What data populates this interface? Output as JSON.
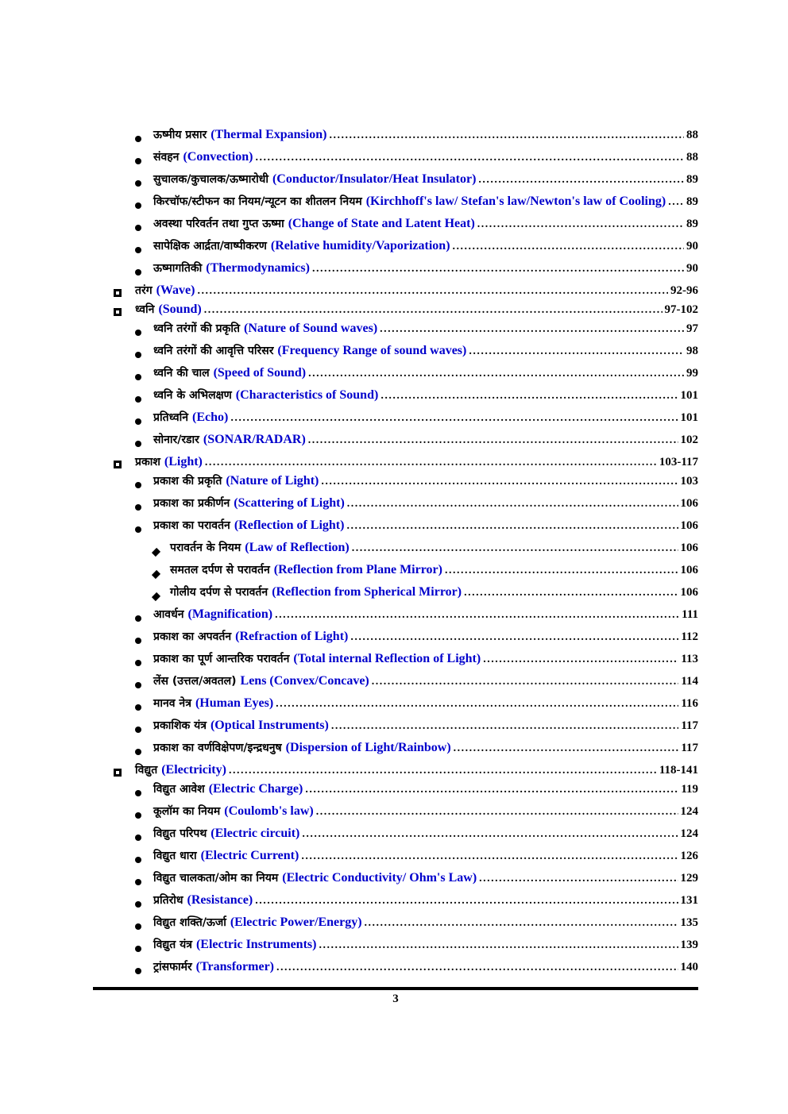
{
  "colors": {
    "link_blue": "#0000cc",
    "text_black": "#000000"
  },
  "icons": {
    "section_bullet": "square-bullet-icon",
    "item_bullet": "circle-bullet-icon",
    "subitem_bullet": "diamond-bullet-icon"
  },
  "footer": {
    "page_number": "3"
  },
  "toc": {
    "entries": [
      {
        "level": 1,
        "hi": "ऊष्मीय प्रसार",
        "en": "(Thermal Expansion)",
        "page": "88"
      },
      {
        "level": 1,
        "hi": "संवहन",
        "en": "(Convection)",
        "page": "88"
      },
      {
        "level": 1,
        "hi": "सुचालक/कुचालक/ऊष्मारोधी",
        "en": "(Conductor/Insulator/Heat Insulator)",
        "page": "89"
      },
      {
        "level": 1,
        "hi": "किरचॉफ/स्टीफन का नियम/न्यूटन का शीतलन नियम",
        "en": "(Kirchhoff's law/ Stefan's law/Newton's law of Cooling)",
        "page": "89"
      },
      {
        "level": 1,
        "hi": "अवस्था परिवर्तन तथा गुप्त ऊष्मा",
        "en": "(Change of State and Latent Heat)",
        "page": "89"
      },
      {
        "level": 1,
        "hi": "सापेक्षिक आर्द्रता/वाष्पीकरण",
        "en": "(Relative humidity/Vaporization)",
        "page": "90"
      },
      {
        "level": 1,
        "hi": "ऊष्मागतिकी",
        "en": "(Thermodynamics)",
        "page": "90"
      },
      {
        "level": 0,
        "hi": "तरंग",
        "en": "(Wave)",
        "page": "92-96"
      },
      {
        "level": 0,
        "hi": "ध्वनि",
        "en": "(Sound)",
        "page": "97-102"
      },
      {
        "level": 1,
        "hi": "ध्वनि तरंगों की प्रकृति",
        "en": "(Nature of Sound waves)",
        "page": "97"
      },
      {
        "level": 1,
        "hi": "ध्वनि तरंगों की आवृत्ति परिसर",
        "en": "(Frequency Range of sound waves)",
        "page": "98"
      },
      {
        "level": 1,
        "hi": "ध्वनि की चाल",
        "en": "(Speed of Sound)",
        "page": "99"
      },
      {
        "level": 1,
        "hi": "ध्वनि के अभिलक्षण",
        "en": "(Characteristics of Sound)",
        "page": "101"
      },
      {
        "level": 1,
        "hi": "प्रतिध्वनि",
        "en": "(Echo)",
        "page": "101"
      },
      {
        "level": 1,
        "hi": "सोनार/रडार",
        "en": "(SONAR/RADAR)",
        "page": "102"
      },
      {
        "level": 0,
        "hi": "प्रकाश",
        "en": "(Light)",
        "page": "103-117"
      },
      {
        "level": 1,
        "hi": "प्रकाश की प्रकृति",
        "en": "(Nature of Light)",
        "page": "103"
      },
      {
        "level": 1,
        "hi": "प्रकाश का प्रकीर्णन",
        "en": "(Scattering of Light)",
        "page": "106"
      },
      {
        "level": 1,
        "hi": "प्रकाश का परावर्तन",
        "en": "(Reflection of Light)",
        "page": "106"
      },
      {
        "level": 2,
        "hi": "परावर्तन के नियम",
        "en": "(Law of Reflection)",
        "page": "106"
      },
      {
        "level": 2,
        "hi": "समतल दर्पण से परावर्तन",
        "en": "(Reflection from Plane Mirror)",
        "page": "106"
      },
      {
        "level": 2,
        "hi": "गोलीय दर्पण से परावर्तन",
        "en": "(Reflection from Spherical Mirror)",
        "page": "106"
      },
      {
        "level": 1,
        "hi": "आवर्धन",
        "en": "(Magnification)",
        "page": "111"
      },
      {
        "level": 1,
        "hi": "प्रकाश का अपवर्तन",
        "en": "(Refraction of Light)",
        "page": "112"
      },
      {
        "level": 1,
        "hi": "प्रकाश का पूर्ण आन्तरिक परावर्तन",
        "en": "(Total internal Reflection of Light)",
        "page": "113"
      },
      {
        "level": 1,
        "hi": "लेंस (उत्तल/अवतल)",
        "en": "Lens (Convex/Concave)",
        "page": "114"
      },
      {
        "level": 1,
        "hi": "मानव नेत्र",
        "en": "(Human Eyes)",
        "page": "116"
      },
      {
        "level": 1,
        "hi": "प्रकाशिक यंत्र",
        "en": "(Optical Instruments)",
        "page": "117"
      },
      {
        "level": 1,
        "hi": "प्रकाश का वर्णविक्षेपण/इन्द्रधनुष",
        "en": "(Dispersion of Light/Rainbow)",
        "page": "117"
      },
      {
        "level": 0,
        "hi": "विद्युत",
        "en": "(Electricity)",
        "page": "118-141"
      },
      {
        "level": 1,
        "hi": "विद्युत आवेश",
        "en": "(Electric Charge)",
        "page": "119"
      },
      {
        "level": 1,
        "hi": "कूलॉम का नियम",
        "en": "(Coulomb's law)",
        "page": "124"
      },
      {
        "level": 1,
        "hi": "विद्युत परिपथ",
        "en": "(Electric circuit)",
        "page": "124"
      },
      {
        "level": 1,
        "hi": "विद्युत धारा",
        "en": "(Electric Current)",
        "page": "126"
      },
      {
        "level": 1,
        "hi": "विद्युत चालकता/ओम का नियम",
        "en": "(Electric Conductivity/ Ohm's Law)",
        "page": "129"
      },
      {
        "level": 1,
        "hi": "प्रतिरोध",
        "en": "(Resistance)",
        "page": "131"
      },
      {
        "level": 1,
        "hi": "विद्युत शक्ति/ऊर्जा",
        "en": "(Electric Power/Energy)",
        "page": "135"
      },
      {
        "level": 1,
        "hi": "विद्युत यंत्र",
        "en": "(Electric Instruments)",
        "page": "139"
      },
      {
        "level": 1,
        "hi": "ट्रांसफार्मर",
        "en": "(Transformer)",
        "page": "140"
      }
    ]
  }
}
